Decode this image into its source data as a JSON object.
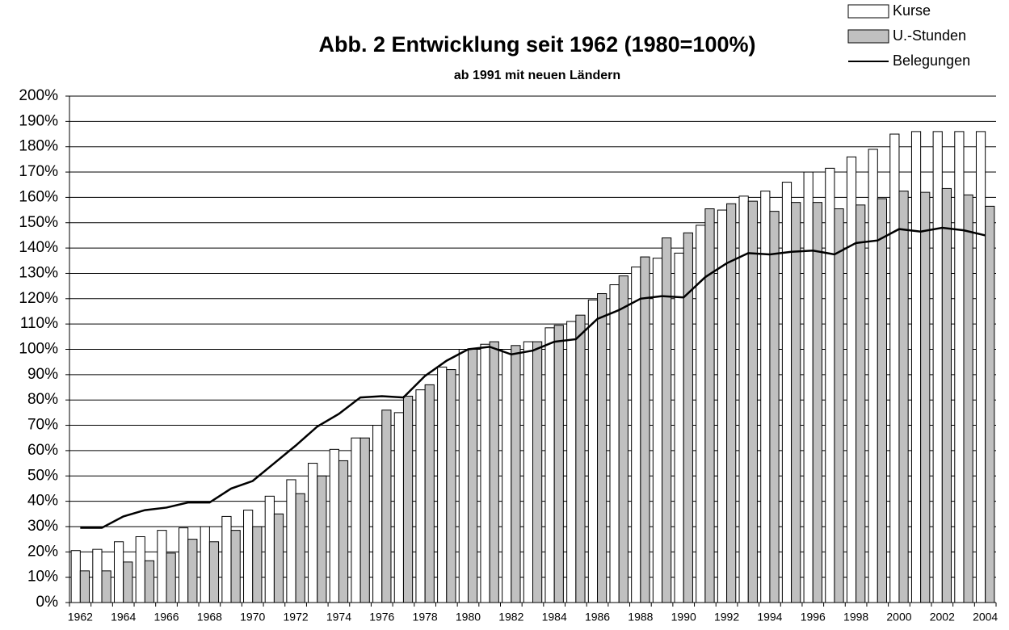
{
  "chart_data": {
    "type": "bar_line",
    "title": "Abb. 2 Entwicklung seit 1962 (1980=100%)",
    "subtitle": "ab 1991 mit neuen Ländern",
    "categories": [
      "1962",
      null,
      "1964",
      null,
      "1966",
      null,
      "1968",
      null,
      "1970",
      null,
      "1972",
      null,
      "1974",
      null,
      "1976",
      null,
      "1978",
      null,
      "1980",
      null,
      "1982",
      null,
      "1984",
      null,
      "1986",
      null,
      "1988",
      null,
      "1990",
      null,
      "1992",
      null,
      "1994",
      null,
      "1996",
      null,
      "1998",
      null,
      "2000",
      null,
      "2002",
      null,
      "2004"
    ],
    "series": [
      {
        "name": "Kurse",
        "kind": "bar",
        "color": "#ffffff",
        "values": [
          20.5,
          21,
          24,
          26,
          28.5,
          29.5,
          30,
          34,
          36.5,
          42,
          48.5,
          55,
          60.5,
          65,
          70,
          75,
          84,
          93,
          100,
          102,
          100,
          103,
          108.5,
          111,
          119.5,
          125.5,
          132.5,
          136,
          138,
          149,
          155,
          160.5,
          162.5,
          166,
          170,
          171.5,
          176,
          179,
          185,
          186,
          186,
          186,
          186
        ]
      },
      {
        "name": "U.-Stunden",
        "kind": "bar",
        "color": "#c0c0c0",
        "values": [
          12.5,
          12.5,
          16,
          16.5,
          19.5,
          25,
          24,
          28.5,
          30,
          35,
          43,
          50,
          56,
          65,
          76,
          81.5,
          86,
          92,
          100,
          103,
          101.5,
          103,
          109.5,
          113.5,
          122,
          129,
          136.5,
          144,
          146,
          155.5,
          157.5,
          158.5,
          154.5,
          158,
          158,
          155.5,
          157,
          159.5,
          162.5,
          162,
          163.5,
          161,
          156.5
        ]
      },
      {
        "name": "Belegungen",
        "kind": "line",
        "color": "#000000",
        "values": [
          29.5,
          29.5,
          34,
          36.5,
          37.5,
          39.5,
          39.5,
          45,
          48,
          55,
          62,
          69.5,
          74.5,
          81,
          81.5,
          81,
          89.5,
          95.5,
          100,
          101,
          98,
          99.5,
          103,
          104,
          112,
          115.5,
          120,
          121,
          120.5,
          128.5,
          134,
          138,
          137.5,
          138.5,
          139,
          137.5,
          142,
          143,
          147.5,
          146.5,
          148,
          147,
          145
        ]
      }
    ],
    "ylim": [
      0,
      200
    ],
    "yticks": [
      {
        "value": 0,
        "label": "0%"
      },
      {
        "value": 10,
        "label": "10%"
      },
      {
        "value": 20,
        "label": "20%"
      },
      {
        "value": 30,
        "label": "30%"
      },
      {
        "value": 40,
        "label": "40%"
      },
      {
        "value": 50,
        "label": "50%"
      },
      {
        "value": 60,
        "label": "60%"
      },
      {
        "value": 70,
        "label": "70%"
      },
      {
        "value": 80,
        "label": "80%"
      },
      {
        "value": 90,
        "label": "90%"
      },
      {
        "value": 100,
        "label": "100%"
      },
      {
        "value": 110,
        "label": "110%"
      },
      {
        "value": 120,
        "label": "120%"
      },
      {
        "value": 130,
        "label": "130%"
      },
      {
        "value": 140,
        "label": "140%"
      },
      {
        "value": 150,
        "label": "150%"
      },
      {
        "value": 160,
        "label": "160%"
      },
      {
        "value": 170,
        "label": "170%"
      },
      {
        "value": 180,
        "label": "180%"
      },
      {
        "value": 190,
        "label": "190%"
      },
      {
        "value": 200,
        "label": "200%"
      }
    ],
    "grid": true,
    "legend": "top-right"
  }
}
